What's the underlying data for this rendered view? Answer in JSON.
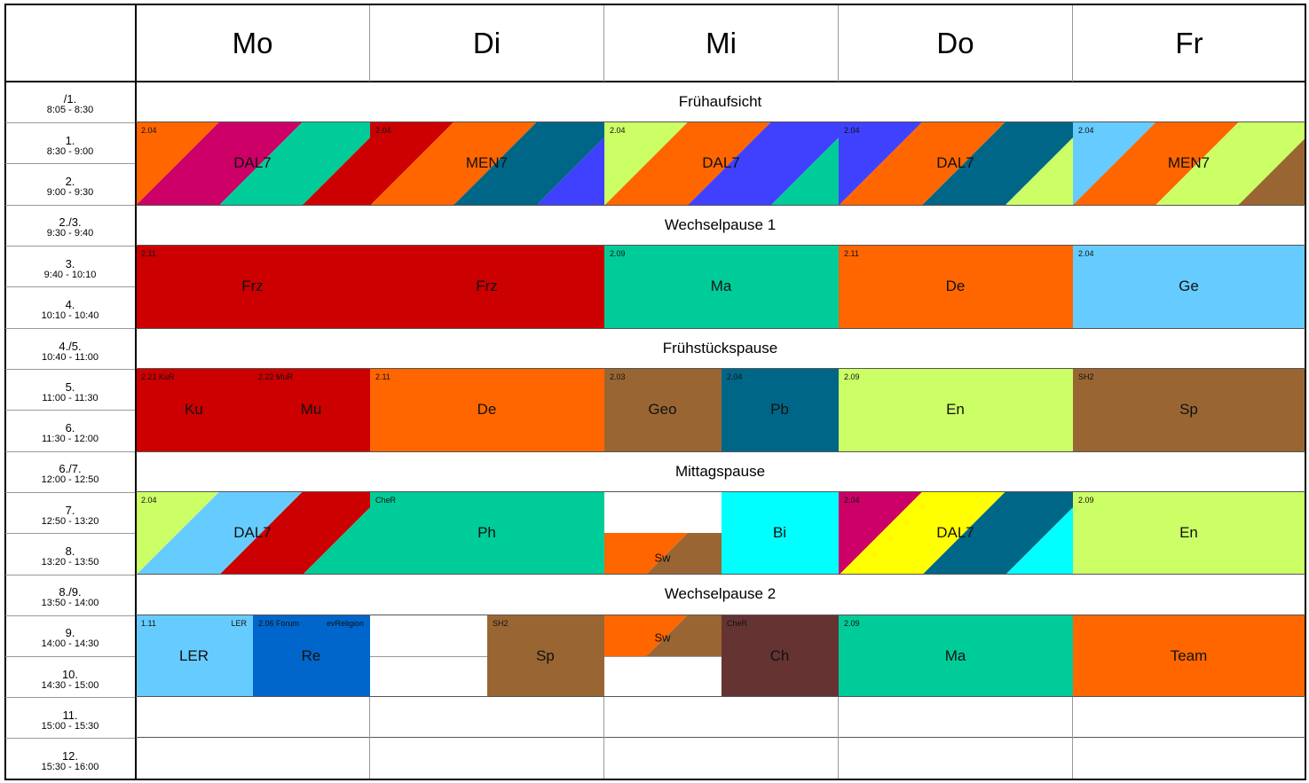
{
  "days": [
    "Mo",
    "Di",
    "Mi",
    "Do",
    "Fr"
  ],
  "periods": [
    {
      "label": "/1.",
      "time": "8:05 - 8:30"
    },
    {
      "label": "1.",
      "time": "8:30 - 9:00"
    },
    {
      "label": "2.",
      "time": "9:00 - 9:30"
    },
    {
      "label": "2./3.",
      "time": "9:30 - 9:40"
    },
    {
      "label": "3.",
      "time": "9:40 - 10:10"
    },
    {
      "label": "4.",
      "time": "10:10 - 10:40"
    },
    {
      "label": "4./5.",
      "time": "10:40 - 11:00"
    },
    {
      "label": "5.",
      "time": "11:00 - 11:30"
    },
    {
      "label": "6.",
      "time": "11:30 - 12:00"
    },
    {
      "label": "6./7.",
      "time": "12:00 - 12:50"
    },
    {
      "label": "7.",
      "time": "12:50 - 13:20"
    },
    {
      "label": "8.",
      "time": "13:20 - 13:50"
    },
    {
      "label": "8./9.",
      "time": "13:50 - 14:00"
    },
    {
      "label": "9.",
      "time": "14:00 - 14:30"
    },
    {
      "label": "10.",
      "time": "14:30 - 15:00"
    },
    {
      "label": "11.",
      "time": "15:00 - 15:30"
    },
    {
      "label": "12.",
      "time": "15:30 - 16:00"
    }
  ],
  "breaks": {
    "b0": "Frühaufsicht",
    "b3": "Wechselpause 1",
    "b6": "Frühstückspause",
    "b9": "Mittagspause",
    "b12": "Wechselpause 2"
  },
  "lessons": {
    "mo12": {
      "subject": "DAL7",
      "room": "2.04",
      "colors": [
        "#ff6600",
        "#cc0066",
        "#00cc99",
        "#cc0000"
      ]
    },
    "di12": {
      "subject": "MEN7",
      "room": "2.04",
      "colors": [
        "#cc0000",
        "#ff6600",
        "#006688",
        "#4040ff"
      ]
    },
    "mi12": {
      "subject": "DAL7",
      "room": "2.04",
      "colors": [
        "#ccff66",
        "#ff6600",
        "#4040ff",
        "#00cc99"
      ]
    },
    "do12": {
      "subject": "DAL7",
      "room": "2.04",
      "colors": [
        "#4040ff",
        "#ff6600",
        "#006688",
        "#ccff66"
      ]
    },
    "fr12": {
      "subject": "MEN7",
      "room": "2.04",
      "colors": [
        "#66ccff",
        "#ff6600",
        "#ccff66",
        "#996633"
      ]
    },
    "mo34": {
      "subject": "Frz",
      "room": "2.11",
      "colors": [
        "#cc0000"
      ]
    },
    "di34": {
      "subject": "Frz",
      "room": "",
      "colors": [
        "#cc0000"
      ]
    },
    "mi34": {
      "subject": "Ma",
      "room": "2.09",
      "colors": [
        "#00cc99"
      ]
    },
    "do34": {
      "subject": "De",
      "room": "2.11",
      "colors": [
        "#ff6600"
      ]
    },
    "fr34": {
      "subject": "Ge",
      "room": "2.04",
      "colors": [
        "#66ccff"
      ]
    },
    "mo56a": {
      "subject": "Ku",
      "room": "2.21 KuR",
      "colors": [
        "#cc0000"
      ]
    },
    "mo56b": {
      "subject": "Mu",
      "room": "2.22 MuR",
      "colors": [
        "#cc0000"
      ]
    },
    "di56": {
      "subject": "De",
      "room": "2.11",
      "colors": [
        "#ff6600"
      ]
    },
    "mi56a": {
      "subject": "Geo",
      "room": "2.03",
      "colors": [
        "#996633"
      ]
    },
    "mi56b": {
      "subject": "Pb",
      "room": "2.04",
      "colors": [
        "#006688"
      ]
    },
    "do56": {
      "subject": "En",
      "room": "2.09",
      "colors": [
        "#ccff66"
      ]
    },
    "fr56": {
      "subject": "Sp",
      "room": "SH2",
      "colors": [
        "#996633"
      ]
    },
    "mo78": {
      "subject": "DAL7",
      "room": "2.04",
      "colors": [
        "#ccff66",
        "#66ccff",
        "#cc0000",
        "#00cc99"
      ]
    },
    "di78": {
      "subject": "Ph",
      "room": "CheR",
      "colors": [
        "#00cc99"
      ]
    },
    "mi8a": {
      "subject": "Sw",
      "room": "",
      "colors": [
        "#ff6600",
        "#996633"
      ]
    },
    "mi78b": {
      "subject": "Bi",
      "room": "",
      "colors": [
        "#00ffff"
      ]
    },
    "do78": {
      "subject": "DAL7",
      "room": "2.04",
      "colors": [
        "#cc0066",
        "#ffff00",
        "#006688",
        "#00ffff"
      ]
    },
    "fr78": {
      "subject": "En",
      "room": "2.09",
      "colors": [
        "#ccff66"
      ]
    },
    "mo910a": {
      "subject": "LER",
      "room": "1.11",
      "tag": "LER",
      "colors": [
        "#66ccff"
      ]
    },
    "mo910b": {
      "subject": "Re",
      "room": "2.06 Forum",
      "tag": "evReligion",
      "colors": [
        "#0066cc"
      ]
    },
    "di910b": {
      "subject": "Sp",
      "room": "SH2",
      "colors": [
        "#996633"
      ]
    },
    "mi9a": {
      "subject": "Sw",
      "room": "",
      "colors": [
        "#ff6600",
        "#996633"
      ]
    },
    "mi910b": {
      "subject": "Ch",
      "room": "CheR",
      "colors": [
        "#663333"
      ]
    },
    "do910": {
      "subject": "Ma",
      "room": "2.09",
      "colors": [
        "#00cc99"
      ]
    },
    "fr910": {
      "subject": "Team",
      "room": "",
      "colors": [
        "#ff6600"
      ]
    }
  }
}
